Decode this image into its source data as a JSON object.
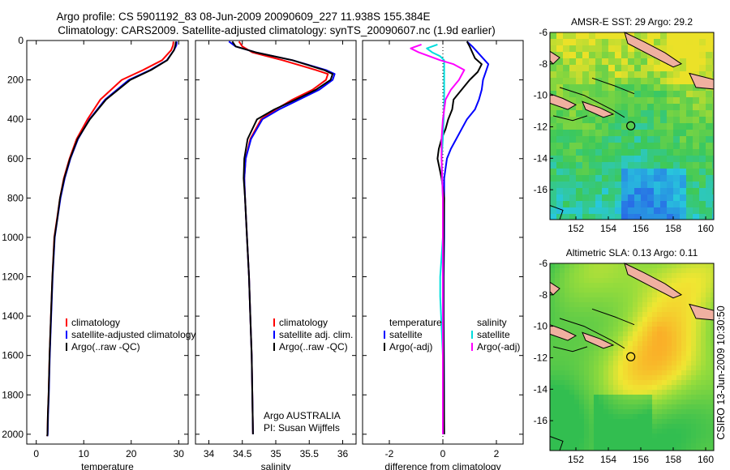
{
  "title_line1": "Argo profile: CS 5901192_83 08-Jun-2009 20090609_227 11.938S 155.384E",
  "title_line2": "Climatology: CARS2009. Satellite-adjusted climatology: synTS_20090607.nc (1.9d earlier)",
  "side_label": "CSIRO 13-Jun-2009 10:30:50",
  "colors": {
    "clim": "#ff0000",
    "sat": "#0000ff",
    "argo": "#000000",
    "cyan": "#00dddd",
    "magenta": "#ff00ff",
    "grid_dotted": "#000000"
  },
  "chart_data": [
    {
      "id": "temperature",
      "type": "line",
      "xlabel": "temperature",
      "ylabel": "",
      "xlim": [
        -2,
        32
      ],
      "ylim": [
        2050,
        0
      ],
      "xticks": [
        0,
        10,
        20,
        30
      ],
      "xtick_labels": [
        "0",
        "10",
        "20",
        "30"
      ],
      "yticks": [
        0,
        200,
        400,
        600,
        800,
        1000,
        1200,
        1400,
        1600,
        1800,
        2000
      ],
      "ytick_labels": [
        "0",
        "200",
        "400",
        "600",
        "800",
        "1000",
        "1200",
        "1400",
        "1600",
        "1800",
        "2000"
      ],
      "legend": {
        "position": "lower-left",
        "entries": [
          {
            "label": "climatology",
            "color": "#ff0000"
          },
          {
            "label": "satellite-adjusted climatology",
            "color": "#0000ff"
          },
          {
            "label": "Argo(..raw -QC)",
            "color": "#000000"
          }
        ]
      },
      "series": [
        {
          "name": "climatology",
          "color": "#ff0000",
          "x": [
            28.9,
            28.8,
            28.4,
            26.5,
            22.5,
            18.0,
            13.5,
            10.8,
            8.5,
            7.0,
            5.8,
            5.0,
            4.4,
            3.8,
            3.4,
            3.1,
            2.8,
            2.6,
            2.45,
            2.35,
            2.3
          ],
          "y": [
            5,
            25,
            50,
            100,
            150,
            200,
            300,
            400,
            500,
            600,
            700,
            800,
            900,
            1000,
            1200,
            1400,
            1600,
            1800,
            1900,
            2000,
            2010
          ]
        },
        {
          "name": "satellite-adjusted climatology",
          "color": "#0000ff",
          "x": [
            29.6,
            29.5,
            29.0,
            27.5,
            24.0,
            19.5,
            14.5,
            11.2,
            8.8,
            7.2,
            6.0,
            5.1,
            4.5,
            3.9,
            3.45,
            3.15,
            2.85,
            2.65,
            2.5,
            2.4,
            2.35
          ],
          "y": [
            5,
            25,
            50,
            100,
            150,
            200,
            300,
            400,
            500,
            600,
            700,
            800,
            900,
            1000,
            1200,
            1400,
            1600,
            1800,
            1900,
            2000,
            2010
          ]
        },
        {
          "name": "Argo(..raw -QC)",
          "color": "#000000",
          "x": [
            29.4,
            29.3,
            29.0,
            27.6,
            24.2,
            19.8,
            14.7,
            11.3,
            8.7,
            7.1,
            5.9,
            5.0,
            4.45,
            3.85,
            3.4,
            3.1,
            2.8,
            2.6,
            2.45,
            2.35,
            2.3
          ],
          "y": [
            5,
            25,
            50,
            100,
            150,
            200,
            300,
            400,
            500,
            600,
            700,
            800,
            900,
            1000,
            1200,
            1400,
            1600,
            1800,
            1900,
            2000,
            2010
          ]
        }
      ]
    },
    {
      "id": "salinity",
      "type": "line",
      "xlabel": "salinity",
      "ylabel": "",
      "xlim": [
        33.8,
        36.2
      ],
      "ylim": [
        2050,
        0
      ],
      "xticks": [
        34,
        34.5,
        35,
        35.5,
        36
      ],
      "xtick_labels": [
        "34",
        "34.5",
        "35",
        "35.5",
        "36"
      ],
      "legend": {
        "position": "lower-right",
        "entries": [
          {
            "label": "climatology",
            "color": "#ff0000"
          },
          {
            "label": "satellite adj. clim.",
            "color": "#0000ff"
          },
          {
            "label": "Argo(..raw -QC)",
            "color": "#000000"
          }
        ]
      },
      "annotation": [
        "Argo AUSTRALIA",
        "PI: Susan Wijffels"
      ],
      "series": [
        {
          "name": "climatology",
          "color": "#ff0000",
          "x": [
            34.45,
            34.5,
            34.65,
            35.1,
            35.6,
            35.78,
            35.75,
            35.55,
            35.25,
            35.0,
            34.78,
            34.62,
            34.55,
            34.53,
            34.54,
            34.57,
            34.6,
            34.62,
            34.64,
            34.65,
            34.66
          ],
          "y": [
            5,
            30,
            60,
            100,
            150,
            170,
            200,
            250,
            300,
            350,
            400,
            500,
            600,
            700,
            800,
            1000,
            1200,
            1400,
            1600,
            1800,
            2000
          ]
        },
        {
          "name": "satellite adj. clim.",
          "color": "#0000ff",
          "x": [
            34.3,
            34.4,
            34.7,
            35.25,
            35.75,
            35.88,
            35.85,
            35.65,
            35.35,
            35.05,
            34.8,
            34.63,
            34.55,
            34.53,
            34.54,
            34.57,
            34.6,
            34.62,
            34.64,
            34.65,
            34.66
          ],
          "y": [
            5,
            30,
            60,
            100,
            150,
            170,
            200,
            250,
            300,
            350,
            400,
            500,
            600,
            700,
            800,
            1000,
            1200,
            1400,
            1600,
            1800,
            2000
          ]
        },
        {
          "name": "Argo(..raw -QC)",
          "color": "#000000",
          "x": [
            34.35,
            34.4,
            34.7,
            35.25,
            35.72,
            35.85,
            35.82,
            35.6,
            35.3,
            34.98,
            34.72,
            34.58,
            34.53,
            34.52,
            34.54,
            34.57,
            34.6,
            34.62,
            34.64,
            34.65,
            34.66
          ],
          "y": [
            5,
            30,
            60,
            100,
            150,
            170,
            200,
            250,
            300,
            350,
            400,
            500,
            600,
            700,
            800,
            1000,
            1200,
            1400,
            1600,
            1800,
            2000
          ]
        }
      ]
    },
    {
      "id": "difference",
      "type": "line",
      "xlabel": "difference from climatology",
      "ylabel": "",
      "xlim": [
        -3,
        3
      ],
      "ylim": [
        2050,
        0
      ],
      "xticks": [
        -2,
        0,
        2
      ],
      "xtick_labels": [
        "-2",
        "0",
        "2"
      ],
      "zero_line": 0,
      "legend": {
        "position": "lower-center",
        "columns": [
          {
            "header": "temperature",
            "entries": [
              {
                "label": "satellite",
                "color": "#0000ff"
              },
              {
                "label": "Argo(-adj)",
                "color": "#000000"
              }
            ]
          },
          {
            "header": "salinity",
            "entries": [
              {
                "label": "satellite",
                "color": "#00dddd"
              },
              {
                "label": "Argo(-adj)",
                "color": "#ff00ff"
              }
            ]
          }
        ]
      },
      "series": [
        {
          "name": "temperature satellite",
          "color": "#0000ff",
          "x": [
            0.9,
            1.1,
            1.3,
            1.5,
            1.7,
            1.6,
            1.5,
            1.45,
            1.35,
            1.2,
            0.9,
            0.7,
            0.5,
            0.3,
            0.15,
            0.05,
            0.05,
            0.05,
            0.03,
            0.03,
            0.04,
            0.05
          ],
          "y": [
            5,
            30,
            60,
            90,
            120,
            160,
            200,
            250,
            300,
            350,
            400,
            450,
            500,
            550,
            600,
            700,
            800,
            1000,
            1200,
            1400,
            1600,
            2000
          ]
        },
        {
          "name": "temperature Argo(-adj)",
          "color": "#000000",
          "x": [
            0.9,
            1.0,
            1.1,
            1.2,
            1.45,
            1.3,
            1.0,
            0.7,
            0.4,
            0.35,
            0.2,
            0.1,
            -0.05,
            -0.15,
            -0.2,
            -0.05,
            0.05,
            0.03,
            0.02,
            0.02,
            0.03,
            0.05
          ],
          "y": [
            5,
            30,
            60,
            90,
            120,
            160,
            200,
            250,
            300,
            350,
            400,
            450,
            500,
            550,
            600,
            700,
            800,
            1000,
            1200,
            1400,
            1600,
            2000
          ]
        },
        {
          "name": "salinity satellite",
          "color": "#00dddd",
          "x": [
            -0.2,
            -0.6,
            -0.4,
            -0.1,
            0.05,
            0.05,
            0.05,
            0.05,
            0.03,
            0.0,
            -0.05,
            -0.03,
            0.0,
            0.0,
            0.0,
            -0.05,
            -0.1,
            -0.1,
            0.0,
            0.0
          ],
          "y": [
            20,
            40,
            60,
            80,
            100,
            150,
            200,
            300,
            400,
            500,
            600,
            700,
            800,
            900,
            1000,
            1100,
            1200,
            1300,
            1600,
            2000
          ]
        },
        {
          "name": "salinity Argo(-adj)",
          "color": "#ff00ff",
          "x": [
            -0.8,
            -1.2,
            -0.9,
            -0.5,
            -0.1,
            0.4,
            0.8,
            0.6,
            0.3,
            0.1,
            0.0,
            -0.05,
            -0.05,
            0.0,
            0.0,
            0.0
          ],
          "y": [
            20,
            40,
            60,
            80,
            100,
            120,
            150,
            200,
            250,
            300,
            400,
            500,
            600,
            800,
            1000,
            2000
          ]
        }
      ]
    },
    {
      "id": "sst_map",
      "type": "heatmap",
      "title": "AMSR-E SST: 29 Argo: 29.2",
      "xlim": [
        150.4,
        160.5
      ],
      "ylim": [
        -17.9,
        -6
      ],
      "xticks": [
        152,
        154,
        156,
        158,
        160
      ],
      "xtick_labels": [
        "152",
        "154",
        "156",
        "158",
        "160"
      ],
      "yticks": [
        -6,
        -8,
        -10,
        -12,
        -14,
        -16
      ],
      "ytick_labels": [
        "-6",
        "-8",
        "-10",
        "-12",
        "-14",
        "-16"
      ],
      "marker": {
        "lon": 155.384,
        "lat": -11.938
      }
    },
    {
      "id": "sla_map",
      "type": "heatmap",
      "title": "Altimetric SLA: 0.13 Argo: 0.11",
      "xlim": [
        150.4,
        160.5
      ],
      "ylim": [
        -17.9,
        -6
      ],
      "xticks": [
        152,
        154,
        156,
        158,
        160
      ],
      "xtick_labels": [
        "152",
        "154",
        "156",
        "158",
        "160"
      ],
      "yticks": [
        -6,
        -8,
        -10,
        -12,
        -14,
        -16
      ],
      "ytick_labels": [
        "-6",
        "-8",
        "-10",
        "-12",
        "-14",
        "-16"
      ],
      "marker": {
        "lon": 155.384,
        "lat": -11.938
      }
    }
  ]
}
